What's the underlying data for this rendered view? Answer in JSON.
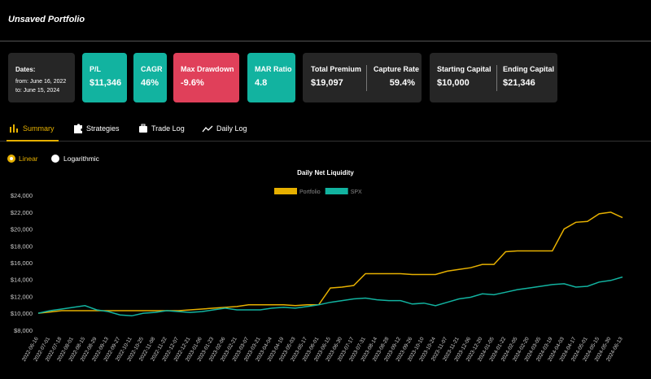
{
  "header": {
    "title": "Unsaved Portfolio"
  },
  "dates": {
    "label": "Dates:",
    "from": "from: June 16, 2022",
    "to": "to: June 15, 2024"
  },
  "cards": [
    {
      "label": "P/L",
      "value": "$11,346"
    },
    {
      "label": "CAGR",
      "value": "46%"
    },
    {
      "label": "Max Drawdown",
      "value": "-9.6%"
    },
    {
      "label": "MAR Ratio",
      "value": "4.8"
    },
    {
      "label": "Total Premium",
      "value": "$19,097"
    },
    {
      "label": "Capture Rate",
      "value": "59.4%"
    },
    {
      "label": "Starting Capital",
      "value": "$10,000"
    },
    {
      "label": "Ending Capital",
      "value": "$21,346"
    }
  ],
  "tabs": [
    "Summary",
    "Strategies",
    "Trade Log",
    "Daily Log"
  ],
  "scale_options": [
    "Linear",
    "Logarithmic"
  ],
  "chart_data": {
    "type": "line",
    "title": "Daily Net Liquidity",
    "legend": "top",
    "grid": false,
    "categories": [
      "2022-06-16",
      "2022-07-01",
      "2022-07-18",
      "2022-08-01",
      "2022-08-15",
      "2022-08-29",
      "2022-09-13",
      "2022-09-27",
      "2022-10-11",
      "2022-10-25",
      "2022-11-08",
      "2022-11-22",
      "2022-12-07",
      "2022-12-21",
      "2023-01-06",
      "2023-01-23",
      "2023-02-06",
      "2023-02-21",
      "2023-03-07",
      "2023-03-21",
      "2023-04-04",
      "2023-04-19",
      "2023-05-03",
      "2023-05-17",
      "2023-06-01",
      "2023-06-15",
      "2023-06-30",
      "2023-07-17",
      "2023-07-31",
      "2023-08-14",
      "2023-08-28",
      "2023-09-12",
      "2023-09-26",
      "2023-10-10",
      "2023-10-24",
      "2023-11-07",
      "2023-11-21",
      "2023-12-06",
      "2023-12-20",
      "2024-01-05",
      "2024-01-22",
      "2024-02-05",
      "2024-02-20",
      "2024-03-05",
      "2024-03-19",
      "2024-04-03",
      "2024-04-17",
      "2024-05-01",
      "2024-05-15",
      "2024-05-30",
      "2024-06-13"
    ],
    "series": [
      {
        "name": "Portfolio",
        "color": "#e6b000",
        "values": [
          10000,
          10150,
          10300,
          10300,
          10300,
          10300,
          10300,
          10300,
          10300,
          10300,
          10300,
          10300,
          10300,
          10400,
          10500,
          10600,
          10700,
          10800,
          11000,
          11000,
          11000,
          11000,
          10900,
          11000,
          11000,
          13000,
          13100,
          13300,
          14700,
          14700,
          14700,
          14700,
          14600,
          14600,
          14600,
          15000,
          15200,
          15400,
          15800,
          15800,
          17300,
          17400,
          17400,
          17400,
          17400,
          20000,
          20800,
          20900,
          21800,
          22000,
          21346
        ]
      },
      {
        "name": "SPX",
        "color": "#12b3a0",
        "values": [
          10000,
          10300,
          10500,
          10700,
          10900,
          10400,
          10200,
          9800,
          9700,
          10000,
          10100,
          10300,
          10200,
          10100,
          10200,
          10400,
          10600,
          10400,
          10400,
          10400,
          10600,
          10700,
          10600,
          10800,
          11000,
          11300,
          11500,
          11700,
          11800,
          11600,
          11500,
          11500,
          11100,
          11200,
          10900,
          11300,
          11700,
          11900,
          12300,
          12200,
          12500,
          12800,
          13000,
          13200,
          13400,
          13500,
          13100,
          13200,
          13700,
          13900,
          14300
        ]
      }
    ],
    "ylim": [
      7600,
      24400
    ],
    "yticks": [
      {
        "value": 8000,
        "label": "$8,000"
      },
      {
        "value": 10000,
        "label": "$10,000"
      },
      {
        "value": 12000,
        "label": "$12,000"
      },
      {
        "value": 14000,
        "label": "$14,000"
      },
      {
        "value": 16000,
        "label": "$16,000"
      },
      {
        "value": 18000,
        "label": "$18,000"
      },
      {
        "value": 20000,
        "label": "$20,000"
      },
      {
        "value": 22000,
        "label": "$22,000"
      },
      {
        "value": 24000,
        "label": "$24,000"
      }
    ]
  }
}
